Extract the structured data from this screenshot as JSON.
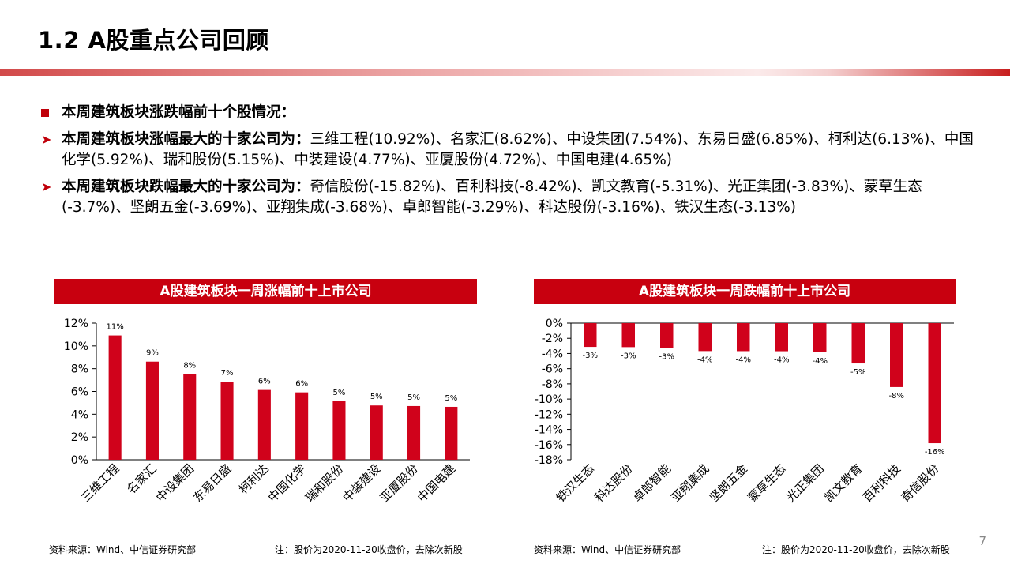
{
  "page": {
    "title": "1.2 A股重点公司回顾",
    "page_number": "7"
  },
  "summary": {
    "heading": "本周建筑板块涨跌幅前十个股情况：",
    "gainers_lead": "本周建筑板块涨幅最大的十家公司为：",
    "gainers_text": "三维工程(10.92%)、名家汇(8.62%)、中设集团(7.54%)、东易日盛(6.85%)、柯利达(6.13%)、中国化学(5.92%)、瑞和股份(5.15%)、中装建设(4.77%)、亚厦股份(4.72%)、中国电建(4.65%)",
    "losers_lead": "本周建筑板块跌幅最大的十家公司为：",
    "losers_text": "奇信股份(-15.82%)、百利科技(-8.42%)、凯文教育(-5.31%)、光正集团(-3.83%)、蒙草生态(-3.7%)、坚朗五金(-3.69%)、亚翔集成(-3.68%)、卓郎智能(-3.29%)、科达股份(-3.16%)、铁汉生态(-3.13%)"
  },
  "chart_data": [
    {
      "type": "bar",
      "title": "A股建筑板块一周涨幅前十上市公司",
      "categories": [
        "三维工程",
        "名家汇",
        "中设集团",
        "东易日盛",
        "柯利达",
        "中国化学",
        "瑞和股份",
        "中装建设",
        "亚厦股份",
        "中国电建"
      ],
      "values": [
        10.92,
        8.62,
        7.54,
        6.85,
        6.13,
        5.92,
        5.15,
        4.77,
        4.72,
        4.65
      ],
      "data_labels": [
        "11%",
        "9%",
        "8%",
        "7%",
        "6%",
        "6%",
        "5%",
        "5%",
        "5%",
        "5%"
      ],
      "y_ticks": [
        "12%",
        "10%",
        "8%",
        "6%",
        "4%",
        "2%",
        "0%"
      ],
      "ylim": [
        0,
        12
      ],
      "bar_color": "#d0021b",
      "source": "资料来源：Wind、中信证券研究部",
      "note": "注：股价为2020-11-20收盘价，去除次新股"
    },
    {
      "type": "bar",
      "title": "A股建筑板块一周跌幅前十上市公司",
      "categories": [
        "铁汉生态",
        "科达股份",
        "卓郎智能",
        "亚翔集成",
        "坚朗五金",
        "蒙草生态",
        "光正集团",
        "凯文教育",
        "百利科技",
        "奇信股份"
      ],
      "values": [
        -3.13,
        -3.16,
        -3.29,
        -3.68,
        -3.69,
        -3.7,
        -3.83,
        -5.31,
        -8.42,
        -15.82
      ],
      "data_labels": [
        "-3%",
        "-3%",
        "-3%",
        "-4%",
        "-4%",
        "-4%",
        "-4%",
        "-5%",
        "-8%",
        "-16%"
      ],
      "y_ticks": [
        "0%",
        "-2%",
        "-4%",
        "-6%",
        "-8%",
        "-10%",
        "-12%",
        "-14%",
        "-16%",
        "-18%"
      ],
      "ylim": [
        -18,
        0
      ],
      "bar_color": "#d0021b",
      "source": "资料来源：Wind、中信证券研究部",
      "note": "注：股价为2020-11-20收盘价，去除次新股"
    }
  ]
}
